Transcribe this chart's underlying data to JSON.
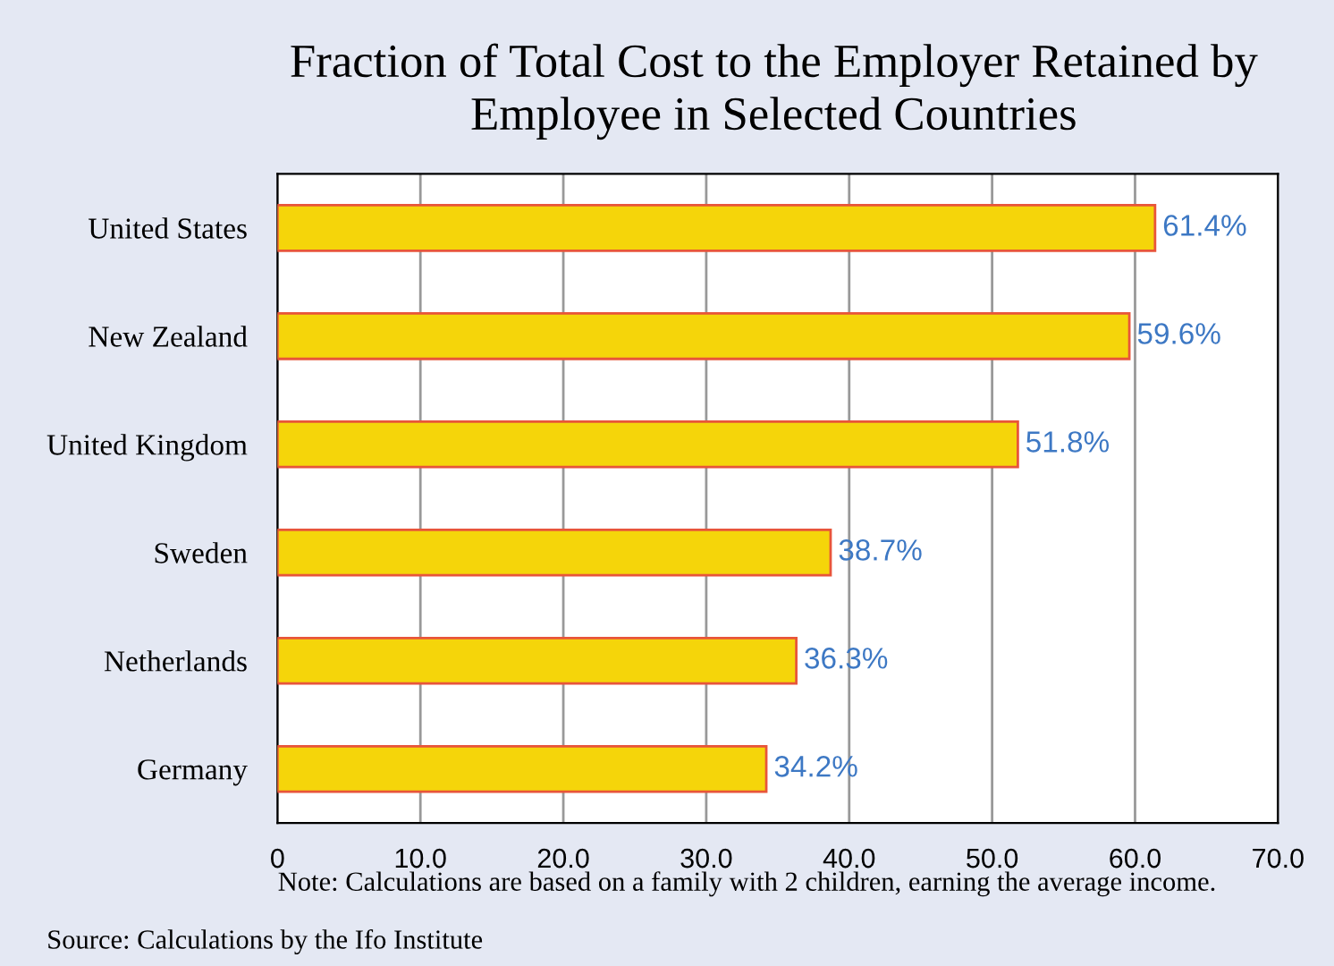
{
  "chart_data": {
    "type": "bar",
    "orientation": "horizontal",
    "title": "Fraction of Total Cost to the Employer Retained by Employee in Selected Countries",
    "categories": [
      "United States",
      "New Zealand",
      "United Kingdom",
      "Sweden",
      "Netherlands",
      "Germany"
    ],
    "values": [
      61.4,
      59.6,
      51.8,
      38.7,
      36.3,
      34.2
    ],
    "value_labels": [
      "61.4%",
      "59.6%",
      "51.8%",
      "38.7%",
      "36.3%",
      "34.2%"
    ],
    "color": "#f5d50a",
    "xlim": [
      0,
      70
    ],
    "xticks": [
      0,
      {
        "value": 10,
        "label": "10.0"
      },
      {
        "value": 20,
        "label": "20.0"
      },
      {
        "value": 30,
        "label": "30.0"
      },
      {
        "value": 40,
        "label": "40.0"
      },
      {
        "value": 50,
        "label": "50.0"
      },
      {
        "value": 60,
        "label": "60.0"
      },
      {
        "value": 70,
        "label": "70.0"
      }
    ],
    "grid": "x",
    "legend": false,
    "annotations": [
      "Note: Calculations are based on a family with 2 children, earning the average income.",
      "Source: Calculations by the Ifo Institute"
    ]
  }
}
